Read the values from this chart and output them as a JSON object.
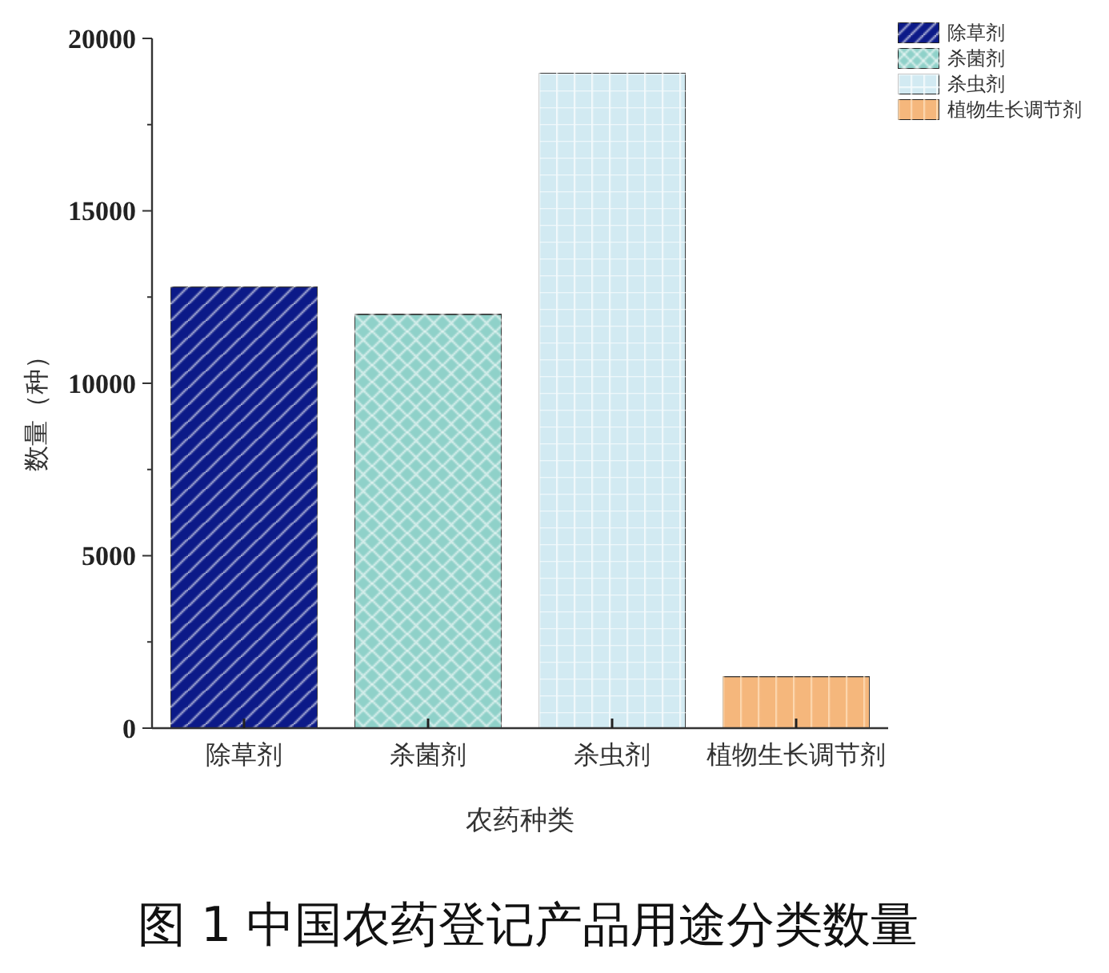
{
  "chart_data": {
    "type": "bar",
    "title": "图 1 中国农药登记产品用途分类数量",
    "xlabel": "农药种类",
    "ylabel": "数量（种）",
    "categories": [
      "除草剂",
      "杀菌剂",
      "杀虫剂",
      "植物生长调节剂"
    ],
    "stacked": true,
    "series": [
      {
        "name": "除草剂",
        "color": "#0c1a88",
        "values": [
          12800,
          null,
          null,
          null
        ]
      },
      {
        "name": "杀菌剂",
        "color": "#8fd1c9",
        "values": [
          null,
          12000,
          null,
          null
        ]
      },
      {
        "name": "杀虫剂",
        "color": "#d2eaf2",
        "values": [
          null,
          null,
          19000,
          null
        ]
      },
      {
        "name": "植物生长调节剂",
        "color": "#f5b77c",
        "values": [
          null,
          null,
          null,
          1500
        ]
      }
    ],
    "ylim": [
      0,
      20000
    ],
    "yticks": [
      0,
      {
        "value": 2500,
        "label": null
      },
      5000,
      {
        "value": 7500,
        "label": null
      },
      10000,
      {
        "value": 12500,
        "label": null
      },
      15000,
      {
        "value": 17500,
        "label": null
      },
      20000
    ],
    "legend": "top right"
  }
}
